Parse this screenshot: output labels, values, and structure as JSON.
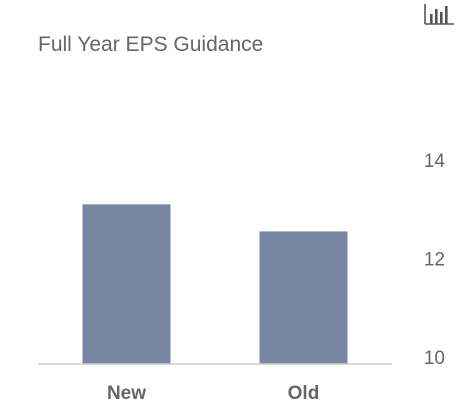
{
  "chart_data": {
    "type": "bar",
    "title": "Full Year EPS Guidance",
    "categories": [
      "New",
      "Old"
    ],
    "values": [
      13.1,
      12.55
    ],
    "ylim": [
      10,
      14
    ],
    "yticks": [
      10,
      12,
      14
    ],
    "y_axis_position": "right",
    "grid": false,
    "bar_color": "#7888a4",
    "xlabel": "",
    "ylabel": ""
  },
  "toolbar": {
    "menu_icon": "bar-chart-icon"
  }
}
